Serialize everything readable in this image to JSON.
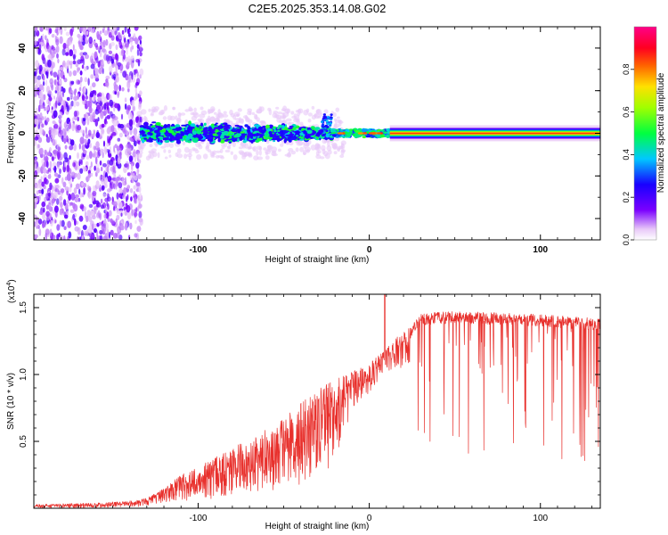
{
  "title": "C2E5.2025.353.14.08.G02",
  "chart_data": [
    {
      "type": "heatmap",
      "xlabel": "Height of straight line (km)",
      "ylabel": "Frequency (Hz)",
      "xlim": [
        -196,
        135
      ],
      "ylim": [
        -50,
        50
      ],
      "xticks": [
        -100,
        0,
        100
      ],
      "xtick_labels": [
        "-100",
        "0",
        "100"
      ],
      "yticks": [
        -40,
        -20,
        0,
        20,
        40
      ],
      "ytick_labels": [
        "-40",
        "-20",
        "0",
        "20",
        "40"
      ],
      "colorbar": {
        "label": "Normalized spectral amplitude",
        "range": [
          0,
          1
        ],
        "ticks": [
          0.0,
          0.2,
          0.4,
          0.6,
          0.8
        ],
        "tick_labels": [
          "0.0",
          "0.2",
          "0.4",
          "0.6",
          "0.8"
        ]
      },
      "regions": [
        {
          "name": "noise",
          "x": [
            -196,
            -133
          ],
          "f": [
            -50,
            50
          ],
          "amplitude": 0.2
        },
        {
          "name": "scatter",
          "x": [
            -133,
            -22
          ],
          "f": [
            -6,
            6
          ],
          "amplitude": 0.35
        },
        {
          "name": "transition",
          "x": [
            -22,
            12
          ],
          "f": [
            -2,
            2
          ],
          "amplitude": 0.7
        },
        {
          "name": "line",
          "x": [
            12,
            135
          ],
          "f": [
            -1,
            1
          ],
          "amplitude": 0.9
        }
      ]
    },
    {
      "type": "line",
      "xlabel": "Height of straight line (km)",
      "ylabel": "SNR (10 * v/v)",
      "scale_label": "(x10",
      "scale_exp": "4",
      "scale_close": ")",
      "xlim": [
        -196,
        135
      ],
      "ylim": [
        0,
        1.6
      ],
      "xticks": [
        -100,
        0,
        100
      ],
      "xtick_labels": [
        "-100",
        "0",
        "100"
      ],
      "yticks": [
        0.5,
        1.0,
        1.5
      ],
      "ytick_labels": [
        "0.5",
        "1.0",
        "1.5"
      ],
      "color": "#e8302c",
      "envelope": {
        "x": [
          -196,
          -160,
          -135,
          -125,
          -110,
          -90,
          -70,
          -50,
          -35,
          -20,
          -10,
          0,
          10,
          20,
          30,
          40,
          60,
          80,
          100,
          120,
          135
        ],
        "high": [
          0.03,
          0.04,
          0.06,
          0.11,
          0.25,
          0.38,
          0.52,
          0.68,
          0.85,
          0.97,
          1.02,
          1.08,
          1.2,
          1.33,
          1.45,
          1.47,
          1.47,
          1.46,
          1.45,
          1.43,
          1.42
        ],
        "low": [
          0.0,
          0.0,
          0.01,
          0.03,
          0.05,
          0.06,
          0.08,
          0.12,
          0.2,
          0.3,
          0.72,
          0.85,
          1.0,
          1.05,
          1.1,
          1.25,
          1.32,
          1.33,
          1.34,
          1.35,
          1.32
        ]
      },
      "peak": {
        "x": 9,
        "y": 1.6
      }
    }
  ]
}
